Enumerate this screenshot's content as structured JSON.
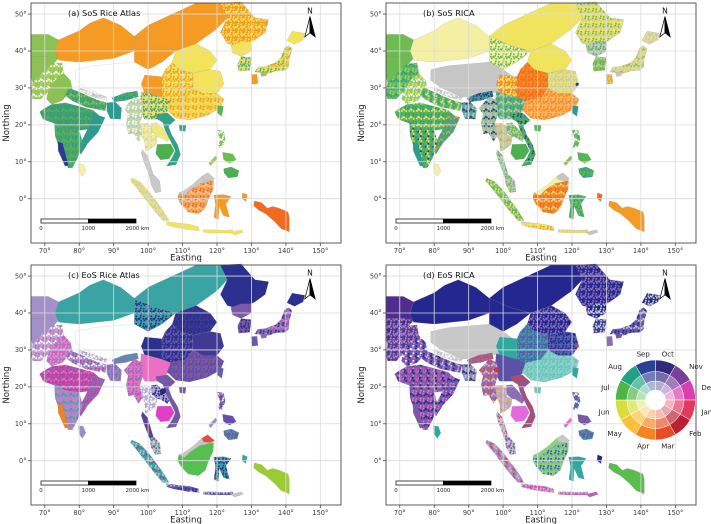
{
  "axes": {
    "x_label": "Easting",
    "y_label": "Northing",
    "x_ticks": [
      "70°",
      "80°",
      "90°",
      "100°",
      "110°",
      "120°",
      "130°",
      "140°",
      "150°"
    ],
    "y_ticks": [
      "50°",
      "40°",
      "30°",
      "20°",
      "10°",
      "0°"
    ]
  },
  "scale_bar": {
    "tick_labels": [
      "0",
      "1000",
      "2000 km"
    ]
  },
  "north_arrow_label": "N",
  "wheel_legend": {
    "months_clockwise_from_top": [
      {
        "label": "Oct",
        "color": "#312A7D"
      },
      {
        "label": "Nov",
        "color": "#7A3F9B"
      },
      {
        "label": "Dec",
        "color": "#D93FAE"
      },
      {
        "label": "Jan",
        "color": "#E2395F"
      },
      {
        "label": "Feb",
        "color": "#BB2030"
      },
      {
        "label": "Mar",
        "color": "#E84E26"
      },
      {
        "label": "Apr",
        "color": "#F5831F"
      },
      {
        "label": "May",
        "color": "#FCBF3F"
      },
      {
        "label": "Jun",
        "color": "#D7DF3A"
      },
      {
        "label": "Jul",
        "color": "#4CB648"
      },
      {
        "label": "Aug",
        "color": "#1FA187"
      },
      {
        "label": "Sep",
        "color": "#2B4193"
      }
    ]
  },
  "panels": [
    {
      "id": "a",
      "label": "(a) SoS Rice Atlas",
      "has_wheel": false,
      "dots": [],
      "region_colors": {
        "casia_west": "#8CC153",
        "afghan": "#8CC153",
        "pakistan": {
          "base": "#A5CE5E",
          "speckle": [
            "#8CC153",
            "#FFFFFF"
          ]
        },
        "xinjiang": "#F59B23",
        "tibet": "#FFFFFF",
        "qinghai": "#F59B23",
        "inner_n": "#F59B23",
        "northeast": {
          "base": "#F59B23",
          "speckle": [
            "#F2E35B"
          ]
        },
        "north_plain": "#F2E35B",
        "east_cn": "#F2E35B",
        "central_cn": {
          "base": "#F2E35B",
          "speckle": [
            "#F59B23"
          ]
        },
        "sichuan": "#F59B23",
        "yunnan": {
          "base": "#EFE25B",
          "speckle": [
            "#3FA08F"
          ]
        },
        "south_cn": {
          "base": "#F3D44F",
          "speckle": [
            "#F59B23",
            "#F2E35B"
          ]
        },
        "korea_n": "#F2E35B",
        "korea_s": {
          "base": "#E4DE6A",
          "speckle": [
            "#57B457",
            "#3FA08F"
          ]
        },
        "jp_hokkaido": "#F2E35B",
        "jp_honshu": {
          "base": "#EDDF60",
          "speckle": [
            "#57B457",
            "#F59B23"
          ]
        },
        "jp_kyushu": "#F59B23",
        "jp_shikoku": "#9BC95A",
        "taiwan": "#57B457",
        "hainan": "#3FA08F",
        "india_nw": "#8CC153",
        "india_ganga": {
          "base": "#4FA85F",
          "speckle": [
            "#2E9B8F",
            "#8CC153"
          ]
        },
        "india_central": {
          "base": "#43A06A",
          "speckle": [
            "#2E9B8F",
            "#57B457"
          ]
        },
        "india_east": "#2E9B8F",
        "india_south": {
          "base": "#4FA85F",
          "speckle": [
            "#2E9B8F",
            "#57B457"
          ]
        },
        "kerala": "#2B3990",
        "nepal": {
          "base": "#DCDCDC",
          "speckle": [
            "#FFFFFF",
            "#BDBDBD"
          ]
        },
        "bangladesh": "#2E9B8F",
        "assam": {
          "base": "#2E9B8F",
          "speckle": [
            "#57B457"
          ]
        },
        "sri_lanka": "#F6F0A6",
        "myanmar": {
          "base": "#BFDCA3",
          "speckle": [
            "#FFFFFF",
            "#BDBDBD"
          ]
        },
        "thailand": {
          "base": "#F3EFA5",
          "speckle": [
            "#E0D98A"
          ]
        },
        "thai_pen": "#C9C9C9",
        "malaysia": "#C9C9C9",
        "laos": "#EFE87E",
        "cambodia": "#4CAF50",
        "vietnam": "#35A089",
        "sumatra": {
          "base": "#EDE468",
          "speckle": [
            "#C9C9C9"
          ]
        },
        "java": "#F2E35B",
        "borneo_nw": "#C9C9C9",
        "borneo_ne": "#C9C9C9",
        "borneo_main": {
          "base": "#F2A45C",
          "speckle": [
            "#F26A21",
            "#F6C98E"
          ]
        },
        "sulawesi": "#F59B23",
        "new_guinea": "#F26A21",
        "halmahera": "#F59B23",
        "luzon": {
          "base": "#7CBF5B",
          "speckle": [
            "#FFFFFF"
          ]
        },
        "visayas": "#6ABF4B",
        "mindanao": "#4CAF50",
        "palawan": "#9BC95A",
        "lesser_sunda": "#F2E35B",
        "timor": "#F2E35B"
      }
    },
    {
      "id": "b",
      "label": "(b) SoS RICA",
      "has_wheel": false,
      "dots": [
        {
          "lon": 121.5,
          "lat": 31,
          "r": 1.6,
          "color": "#2B3990"
        }
      ],
      "region_colors": {
        "casia_west": "#6FBB53",
        "afghan": "#6FBB53",
        "pakistan": {
          "base": "#5BB95B",
          "speckle": [
            "#A5CE5E",
            "#2E9B8F"
          ]
        },
        "xinjiang": "#F4EFA3",
        "tibet": "#C6C6C6",
        "qinghai": {
          "base": "#F4EFA3",
          "speckle": [
            "#6FBB53"
          ]
        },
        "inner_n": "#F0E45E",
        "northeast": {
          "base": "#F0E45E",
          "speckle": [
            "#6FBB53",
            "#C6C6C6"
          ]
        },
        "north_plain": "#F0E45E",
        "east_cn": {
          "base": "#F0E45E",
          "speckle": [
            "#C6C6C6"
          ]
        },
        "central_cn": {
          "base": "#F68C1F",
          "speckle": [
            "#F26522"
          ]
        },
        "sichuan": {
          "base": "#F68C1F",
          "speckle": [
            "#F4E96A"
          ]
        },
        "yunnan": {
          "base": "#63B36A",
          "speckle": [
            "#2E9B8F",
            "#C6C6C6"
          ]
        },
        "south_cn": {
          "base": "#F7B566",
          "speckle": [
            "#F68C1F"
          ]
        },
        "korea_n": {
          "base": "#C6C6C6",
          "speckle": [
            "#57B457"
          ]
        },
        "korea_s": {
          "base": "#8CC153",
          "speckle": [
            "#57B457",
            "#C6C6C6"
          ]
        },
        "jp_hokkaido": {
          "base": "#E9E083",
          "speckle": [
            "#C6C6C6"
          ]
        },
        "jp_honshu": {
          "base": "#E3DC7E",
          "speckle": [
            "#C6C6C6",
            "#8CC153"
          ]
        },
        "jp_kyushu": {
          "base": "#D8CE6B",
          "speckle": [
            "#F59B23"
          ]
        },
        "jp_shikoku": "#C6C6C6",
        "taiwan": "#2E9B8F",
        "hainan": "#57B457",
        "india_nw": {
          "base": "#8FCB6B",
          "speckle": [
            "#F0E45E",
            "#FFFFFF"
          ]
        },
        "india_ganga": {
          "base": "#5BB95B",
          "speckle": [
            "#2E9B8F",
            "#F0E45E",
            "#C6C6C6"
          ]
        },
        "india_central": {
          "base": "#57B457",
          "speckle": [
            "#2E9B8F",
            "#F0E45E"
          ]
        },
        "india_east": {
          "base": "#3FA08F",
          "speckle": [
            "#57B457",
            "#F59B23"
          ]
        },
        "india_south": {
          "base": "#57B457",
          "speckle": [
            "#2E9B8F",
            "#F0E45E",
            "#2B3990"
          ]
        },
        "kerala": "#2E9B8F",
        "nepal": {
          "base": "#C6C6C6",
          "speckle": [
            "#FFFFFF"
          ]
        },
        "bangladesh": {
          "base": "#58A893",
          "speckle": [
            "#C6C6C6",
            "#2B3990"
          ]
        },
        "assam": {
          "base": "#3FA08F",
          "speckle": [
            "#2B3990"
          ]
        },
        "sri_lanka": "#F4EFA3",
        "myanmar": {
          "base": "#9BBF8E",
          "speckle": [
            "#C6C6C6",
            "#2B3990"
          ]
        },
        "thailand": {
          "base": "#BCCFA5",
          "speckle": [
            "#C6C6C6",
            "#F59B23"
          ]
        },
        "thai_pen": {
          "base": "#C6C6C6",
          "speckle": [
            "#57B457"
          ]
        },
        "malaysia": {
          "base": "#C6C6C6",
          "speckle": [
            "#6FBB53"
          ]
        },
        "laos": {
          "base": "#6ABF4B",
          "speckle": [
            "#C6C6C6"
          ]
        },
        "cambodia": "#4CAF50",
        "vietnam": {
          "base": "#4CAF50",
          "speckle": [
            "#2B3990",
            "#3FA08F"
          ]
        },
        "sumatra": {
          "base": "#6ABF4B",
          "speckle": [
            "#F0E45E",
            "#C6C6C6"
          ]
        },
        "java": {
          "base": "#F0E45E",
          "speckle": [
            "#F59B23",
            "#C6C6C6"
          ]
        },
        "borneo_nw": "#F4EFA3",
        "borneo_ne": "#C6C6C6",
        "borneo_main": {
          "base": "#F08A28",
          "speckle": [
            "#F26522",
            "#F4D96A"
          ]
        },
        "sulawesi": {
          "base": "#6ABF4B",
          "speckle": [
            "#2E9B8F"
          ]
        },
        "new_guinea": "#F59B23",
        "halmahera": "#F26522",
        "luzon": {
          "base": "#6ABF4B",
          "speckle": [
            "#3FA08F",
            "#FFFFFF"
          ]
        },
        "visayas": "#57B457",
        "mindanao": {
          "base": "#57B457",
          "speckle": [
            "#2E9B8F"
          ]
        },
        "palawan": "#8CC153",
        "lesser_sunda": {
          "base": "#F0E45E",
          "speckle": [
            "#C6C6C6"
          ]
        },
        "timor": "#C6C6C6"
      }
    },
    {
      "id": "c",
      "label": "(c) EoS Rice Atlas",
      "has_wheel": false,
      "dots": [
        {
          "lon": 104.3,
          "lat": 18.8,
          "r": 3,
          "color": "#1F2B7E"
        }
      ],
      "region_colors": {
        "casia_west": "#A291C8",
        "afghan": "#A291C8",
        "pakistan": {
          "base": "#B4A6D2",
          "speckle": [
            "#D95FBF",
            "#FFFFFF"
          ]
        },
        "xinjiang": "#3AA3A3",
        "tibet": "#FFFFFF",
        "qinghai": {
          "base": "#3AA3A3",
          "speckle": [
            "#2B2F8E"
          ]
        },
        "inner_n": "#3AA3A3",
        "northeast": "#2B2F8E",
        "north_plain": {
          "base": "#2B2F8E",
          "speckle": [
            "#413A95"
          ]
        },
        "east_cn": "#413A95",
        "central_cn": {
          "base": "#2B2F8E",
          "speckle": [
            "#6A5AAE"
          ]
        },
        "sichuan": "#2B2F8E",
        "yunnan": "#ED6FC4",
        "south_cn": {
          "base": "#7C58A5",
          "speckle": [
            "#5D4A9E"
          ]
        },
        "korea_n": "#7C58A5",
        "korea_s": {
          "base": "#7C58A5",
          "speckle": [
            "#2B2F8E"
          ]
        },
        "jp_hokkaido": "#2B2F8E",
        "jp_honshu": {
          "base": "#8A6FB8",
          "speckle": [
            "#2B2F8E",
            "#ED6FC4"
          ]
        },
        "jp_kyushu": "#6A5AAE",
        "jp_shikoku": "#8A6FB8",
        "taiwan": "#6A5AAE",
        "hainan": "#7C58A5",
        "india_nw": {
          "base": "#D95FBF",
          "speckle": [
            "#B4A6D2"
          ]
        },
        "india_ganga": {
          "base": "#9B8EC4",
          "speckle": [
            "#C33FA5",
            "#FFFFFF"
          ]
        },
        "india_central": {
          "base": "#C33FA5",
          "speckle": [
            "#8A6FB8",
            "#ED6FC4"
          ]
        },
        "india_east": {
          "base": "#8A6FB8",
          "speckle": [
            "#C33FA5"
          ]
        },
        "india_south": {
          "base": "#9B8EC4",
          "speckle": [
            "#ED6FC4",
            "#3AA3A3"
          ]
        },
        "kerala": "#E8832A",
        "nepal": {
          "base": "#B4A6D2",
          "speckle": [
            "#FFFFFF"
          ]
        },
        "bangladesh": {
          "base": "#8A6FB8",
          "speckle": [
            "#9B8EC4"
          ]
        },
        "assam": {
          "base": "#8A6FB8",
          "speckle": [
            "#3AA3A3"
          ]
        },
        "sri_lanka": "#9B8EC4",
        "myanmar": {
          "base": "#ED6FC4",
          "speckle": [
            "#8A6FB8"
          ]
        },
        "thailand": {
          "base": "#B9ABD4",
          "speckle": [
            "#FFFFFF"
          ]
        },
        "thai_pen": "#5D3E93",
        "malaysia": {
          "base": "#C6C6C6",
          "speckle": [
            "#3AA3A3",
            "#7C58A5"
          ]
        },
        "laos": {
          "base": "#B4A6D2",
          "speckle": [
            "#1F2B7E"
          ]
        },
        "cambodia": "#E23EC8",
        "vietnam": "#7258A8",
        "sumatra": {
          "base": "#3AA3A3",
          "speckle": [
            "#C6C6C6",
            "#7258A8"
          ]
        },
        "java": {
          "base": "#6258B0",
          "speckle": [
            "#2B2F8E",
            "#C6C6C6"
          ]
        },
        "borneo_nw": "#C6C6C6",
        "borneo_ne": "#F0483C",
        "borneo_main": "#53C04F",
        "sulawesi": {
          "base": "#3AA3A3",
          "speckle": [
            "#2B2F8E"
          ]
        },
        "new_guinea": "#9BCC33",
        "halmahera": "#3AA3A3",
        "luzon": {
          "base": "#6A4FA8",
          "speckle": [
            "#FFFFFF",
            "#9B8EC4"
          ]
        },
        "visayas": "#6A4FA8",
        "mindanao": {
          "base": "#7258A8",
          "speckle": [
            "#3AA3A3"
          ]
        },
        "palawan": "#9B8EC4",
        "lesser_sunda": {
          "base": "#6258B0",
          "speckle": [
            "#C6C6C6"
          ]
        },
        "timor": "#C6C6C6"
      }
    },
    {
      "id": "d",
      "label": "(d) EoS RICA",
      "has_wheel": true,
      "dots": [
        {
          "lon": 121.5,
          "lat": 31,
          "r": 1.6,
          "color": "#E8413C"
        },
        {
          "lon": 98,
          "lat": 24.5,
          "r": 2.4,
          "color": "#E8302A"
        }
      ],
      "region_colors": {
        "casia_west": "#4E2D8F",
        "afghan": {
          "base": "#4E2D8F",
          "speckle": [
            "#9B8EC4"
          ]
        },
        "pakistan": {
          "base": "#4B3E97",
          "speckle": [
            "#9B8EC4",
            "#ED6FC4"
          ]
        },
        "xinjiang": "#23278F",
        "tibet": "#C8C8C8",
        "qinghai": "#23278F",
        "inner_n": "#23278F",
        "northeast": {
          "base": "#23278F",
          "speckle": [
            "#8A6FB8"
          ]
        },
        "north_plain": {
          "base": "#23278F",
          "speckle": [
            "#8A6FB8"
          ]
        },
        "east_cn": {
          "base": "#5560AC",
          "speckle": [
            "#23278F"
          ]
        },
        "central_cn": {
          "base": "#5560AC",
          "speckle": [
            "#3AA3A3"
          ]
        },
        "sichuan": "#2FA8A0",
        "yunnan": "#5B52A8",
        "south_cn": {
          "base": "#6FC5BB",
          "speckle": [
            "#8FD6CE"
          ]
        },
        "korea_n": {
          "base": "#23278F",
          "speckle": [
            "#C8C8C8"
          ]
        },
        "korea_s": {
          "base": "#3A3F9B",
          "speckle": [
            "#C8C8C8"
          ]
        },
        "jp_hokkaido": {
          "base": "#23278F",
          "speckle": [
            "#C8C8C8"
          ]
        },
        "jp_honshu": {
          "base": "#6A5AAE",
          "speckle": [
            "#23278F",
            "#C8C8C8"
          ]
        },
        "jp_kyushu": "#8A6FB8",
        "jp_shikoku": "#6A5AAE",
        "taiwan": "#2FA8A0",
        "hainan": "#6FC5BB",
        "india_nw": {
          "base": "#6A5AAE",
          "speckle": [
            "#23278F",
            "#ED6FC4",
            "#FFFFFF"
          ]
        },
        "india_ganga": {
          "base": "#6A5AAE",
          "speckle": [
            "#23278F",
            "#C8C8C8",
            "#ED6FC4"
          ]
        },
        "india_central": {
          "base": "#7C58A5",
          "speckle": [
            "#C05FC0",
            "#23278F",
            "#ED6FC4"
          ]
        },
        "india_east": {
          "base": "#6A5AAE",
          "speckle": [
            "#ED6FC4",
            "#23278F"
          ]
        },
        "india_south": {
          "base": "#7C58A5",
          "speckle": [
            "#ED6FC4",
            "#23278F"
          ]
        },
        "kerala": "#7C58A5",
        "nepal": {
          "base": "#C8C8C8",
          "speckle": [
            "#FFFFFF"
          ]
        },
        "bangladesh": {
          "base": "#9189B8",
          "speckle": [
            "#C8C8C8",
            "#23278F"
          ]
        },
        "assam": {
          "base": "#8A6FB8",
          "speckle": [
            "#D9453C"
          ]
        },
        "sri_lanka": "#2FA8A0",
        "myanmar": {
          "base": "#9B6FB0",
          "speckle": [
            "#D9453C",
            "#C8C8C8"
          ]
        },
        "thailand": {
          "base": "#B8A8CC",
          "speckle": [
            "#C8C8C8",
            "#F59B23"
          ]
        },
        "thai_pen": {
          "base": "#C8C8C8",
          "speckle": [
            "#7C58A5",
            "#D9453C"
          ]
        },
        "malaysia": {
          "base": "#C8C8C8",
          "speckle": [
            "#7C58A5"
          ]
        },
        "laos": "#8A6FB8",
        "cambodia": "#E668DE",
        "vietnam": {
          "base": "#7C58A5",
          "speckle": [
            "#D9453C"
          ]
        },
        "sumatra": {
          "base": "#9B8EC4",
          "speckle": [
            "#D9453C",
            "#C8C8C8",
            "#ED6FC4"
          ]
        },
        "java": {
          "base": "#D94FC4",
          "speckle": [
            "#C8C8C8"
          ]
        },
        "borneo_nw": "#8CD17D",
        "borneo_ne": "#C8C8C8",
        "borneo_main": {
          "base": "#8CD17D",
          "speckle": [
            "#4A4AB8",
            "#5BBD9E"
          ]
        },
        "sulawesi": "#2FA8A0",
        "new_guinea": "#5BBD4E",
        "halmahera": "#23278F",
        "luzon": {
          "base": "#6A5AAE",
          "speckle": [
            "#2FA8A0",
            "#FFFFFF"
          ]
        },
        "visayas": "#7C58A5",
        "mindanao": {
          "base": "#6A5AAE",
          "speckle": [
            "#2FA8A0"
          ]
        },
        "palawan": "#ED6FC4",
        "lesser_sunda": {
          "base": "#C05FC0",
          "speckle": [
            "#C8C8C8"
          ]
        },
        "timor": "#C05FC0"
      }
    }
  ]
}
